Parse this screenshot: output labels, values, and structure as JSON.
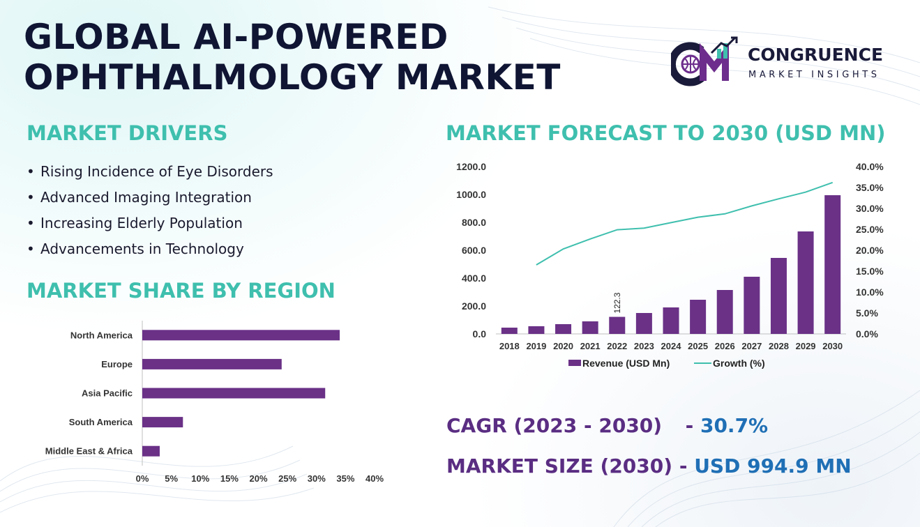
{
  "title_lines": [
    "GLOBAL AI-POWERED",
    "OPHTHALMOLOGY MARKET"
  ],
  "logo": {
    "brand": "CONGRUENCE",
    "sub": "MARKET INSIGHTS",
    "colors": {
      "navy": "#1a1a3a",
      "purple": "#6c2d8c",
      "teal": "#3fbfae"
    }
  },
  "drivers": {
    "heading": "MARKET DRIVERS",
    "items": [
      "Rising Incidence of Eye Disorders",
      "Advanced Imaging Integration",
      "Increasing Elderly Population",
      "Advancements in Technology"
    ]
  },
  "region_heading": "MARKET SHARE BY REGION",
  "forecast_heading": "MARKET FORECAST TO 2030 (USD MN)",
  "cagr": {
    "label": "CAGR (2023 - 2030)",
    "sep": "-",
    "value": "30.7%"
  },
  "market_size": {
    "label": "MARKET SIZE (2030)",
    "sep": "-",
    "value": "USD 994.9 MN"
  },
  "colors": {
    "bar": "#6a3187",
    "line": "#3fbfae",
    "heading": "#3fbfae",
    "stat_label": "#5a2d82",
    "stat_value": "#1f6fb5"
  },
  "chart_data": [
    {
      "type": "bar",
      "orientation": "horizontal",
      "categories": [
        "North America",
        "Europe",
        "Asia Pacific",
        "South America",
        "Middle East & Africa"
      ],
      "values": [
        34,
        24,
        31.5,
        7,
        3
      ],
      "xlim": [
        0,
        40
      ],
      "x_ticks": [
        "0%",
        "5%",
        "10%",
        "15%",
        "20%",
        "25%",
        "30%",
        "35%",
        "40%"
      ],
      "grid": false
    },
    {
      "type": "bar",
      "categories": [
        "2018",
        "2019",
        "2020",
        "2021",
        "2022",
        "2023",
        "2024",
        "2025",
        "2026",
        "2027",
        "2028",
        "2029",
        "2030"
      ],
      "series": [
        {
          "name": "Revenue (USD Mn)",
          "type": "bar",
          "axis": "left",
          "values": [
            45,
            55,
            70,
            90,
            122.3,
            150,
            190,
            245,
            315,
            410,
            545,
            735,
            994.9
          ]
        },
        {
          "name": "Growth (%)",
          "type": "line",
          "axis": "right",
          "values": [
            null,
            16.5,
            20.3,
            22.7,
            24.9,
            25.3,
            26.6,
            27.9,
            28.7,
            30.6,
            32.3,
            33.9,
            36.2
          ]
        }
      ],
      "ylim": [
        0,
        1200
      ],
      "y_ticks": [
        "0.0",
        "200.0",
        "400.0",
        "600.0",
        "800.0",
        "1000.0",
        "1200.0"
      ],
      "y2lim": [
        0,
        40
      ],
      "y2_ticks": [
        "0.0%",
        "5.0%",
        "10.0%",
        "15.0%",
        "20.0%",
        "25.0%",
        "30.0%",
        "35.0%",
        "40.0%"
      ],
      "data_labels": [
        {
          "category": "2022",
          "text": "122.3"
        }
      ],
      "legend_position": "bottom",
      "grid": false
    }
  ]
}
